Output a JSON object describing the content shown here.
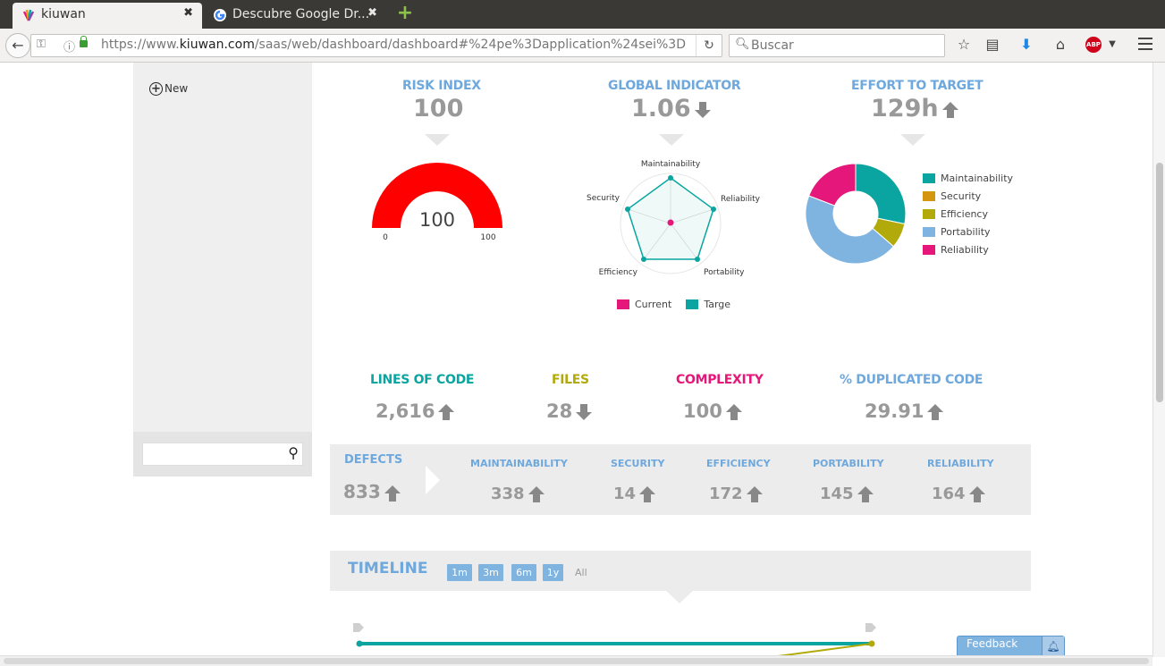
{
  "browser": {
    "tabs": [
      {
        "title": "kiuwan",
        "active": true
      },
      {
        "title": "Descubre Google Dr...",
        "active": false
      }
    ],
    "close_glyph": "✖",
    "url_prefix": "https://www.",
    "url_host": "kiuwan.com",
    "url_rest": "/saas/web/dashboard/dashboard#%24pe%3Dapplication%24sei%3D",
    "search_placeholder": "Buscar",
    "toolbar_icons": [
      "star-icon",
      "reading-list-icon",
      "download-icon",
      "home-icon",
      "adblock-icon",
      "menu-icon"
    ]
  },
  "sidebar": {
    "new_label": "New",
    "search_value": ""
  },
  "risk_index": {
    "title": "RISK INDEX",
    "value": "100",
    "gauge_value": 100,
    "gauge_min": "0",
    "gauge_max": "100",
    "color": "#ff0000"
  },
  "global_indicator": {
    "title": "GLOBAL INDICATOR",
    "value": "1.06",
    "trend": "down",
    "radar": {
      "axes": [
        "Maintainability",
        "Reliability",
        "Portability",
        "Efficiency",
        "Security"
      ],
      "legend": [
        {
          "label": "Current",
          "color": "#e6177a"
        },
        {
          "label": "Targe",
          "color": "#0aa5a0"
        }
      ]
    }
  },
  "effort": {
    "title": "EFFORT TO TARGET",
    "value": "129h",
    "trend": "up",
    "legend": [
      {
        "label": "Maintainability",
        "color": "#0aa5a0"
      },
      {
        "label": "Security",
        "color": "#d4960f"
      },
      {
        "label": "Efficiency",
        "color": "#b2aa0a"
      },
      {
        "label": "Portability",
        "color": "#7fb3e0"
      },
      {
        "label": "Reliability",
        "color": "#e6177a"
      }
    ]
  },
  "metrics": [
    {
      "title": "LINES OF CODE",
      "value": "2,616",
      "trend": "up",
      "color": "#0aa5a0"
    },
    {
      "title": "FILES",
      "value": "28",
      "trend": "down",
      "color": "#b2aa0a"
    },
    {
      "title": "COMPLEXITY",
      "value": "100",
      "trend": "up",
      "color": "#e6177a"
    },
    {
      "title": "% DUPLICATED CODE",
      "value": "29.91",
      "trend": "up",
      "color": "#6fa8dc"
    }
  ],
  "defects": {
    "title": "DEFECTS",
    "value": "833",
    "trend": "up",
    "items": [
      {
        "title": "MAINTAINABILITY",
        "value": "338",
        "trend": "up"
      },
      {
        "title": "SECURITY",
        "value": "14",
        "trend": "up"
      },
      {
        "title": "EFFICIENCY",
        "value": "172",
        "trend": "up"
      },
      {
        "title": "PORTABILITY",
        "value": "145",
        "trend": "up"
      },
      {
        "title": "RELIABILITY",
        "value": "164",
        "trend": "up"
      }
    ]
  },
  "timeline": {
    "title": "TIMELINE",
    "ranges": [
      "1m",
      "3m",
      "6m",
      "1y"
    ],
    "all_label": "All"
  },
  "feedback": {
    "label": "Feedback"
  },
  "chart_data": {
    "type": "pie",
    "title": "EFFORT TO TARGET",
    "categories": [
      "Maintainability",
      "Efficiency",
      "Portability",
      "Reliability",
      "Security"
    ],
    "values": [
      28,
      8,
      44,
      19,
      0
    ],
    "donut": true
  }
}
